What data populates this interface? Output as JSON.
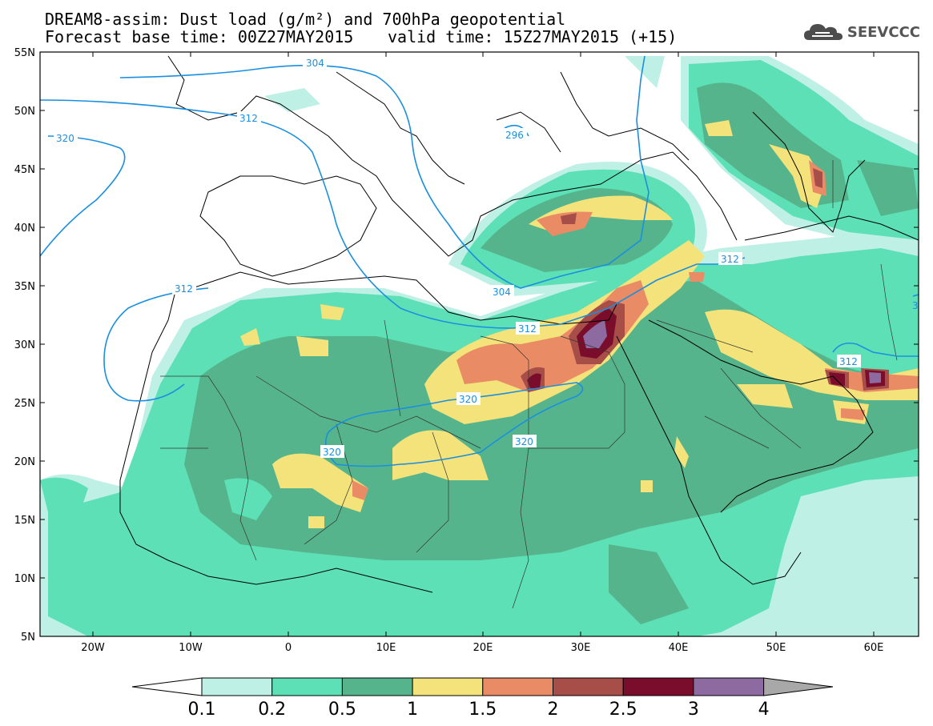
{
  "title": {
    "line1": "DREAM8-assim: Dust load (g/m²) and 700hPa geopotential",
    "line2a": "Forecast base time: 00Z27MAY2015",
    "line2b": "valid time: 15Z27MAY2015 (+15)"
  },
  "logo": {
    "text": "SEEVCCC",
    "icon": "cloud-icon"
  },
  "map": {
    "lat_labels": [
      "55N",
      "50N",
      "45N",
      "40N",
      "35N",
      "30N",
      "25N",
      "20N",
      "15N",
      "10N",
      "5N"
    ],
    "lon_labels": [
      "20W",
      "10W",
      "0",
      "10E",
      "20E",
      "30E",
      "40E",
      "50E",
      "60E"
    ],
    "contour_labels": [
      "304",
      "312",
      "320",
      "296",
      "304",
      "312",
      "312",
      "320",
      "320",
      "320",
      "312",
      "312",
      "3"
    ]
  },
  "colorbar": {
    "ticks": [
      "0.1",
      "0.2",
      "0.5",
      "1",
      "1.5",
      "2",
      "2.5",
      "3",
      "4"
    ],
    "colors": [
      "#bff0e6",
      "#5ee0b6",
      "#56b48c",
      "#f4e27a",
      "#e98c66",
      "#a84e48",
      "#7a0d2c",
      "#8d6aa0",
      "#a8a8a8"
    ]
  },
  "colors": {
    "contour": "#1a8fe0",
    "land_line": "#000000",
    "dust_0_1": "#bff0e6",
    "dust_0_2": "#5ee0b6",
    "dust_0_5": "#56b48c",
    "dust_1": "#f4e27a",
    "dust_1_5": "#e98c66",
    "dust_2": "#a84e48",
    "dust_2_5": "#7a0d2c",
    "dust_3": "#8d6aa0"
  }
}
